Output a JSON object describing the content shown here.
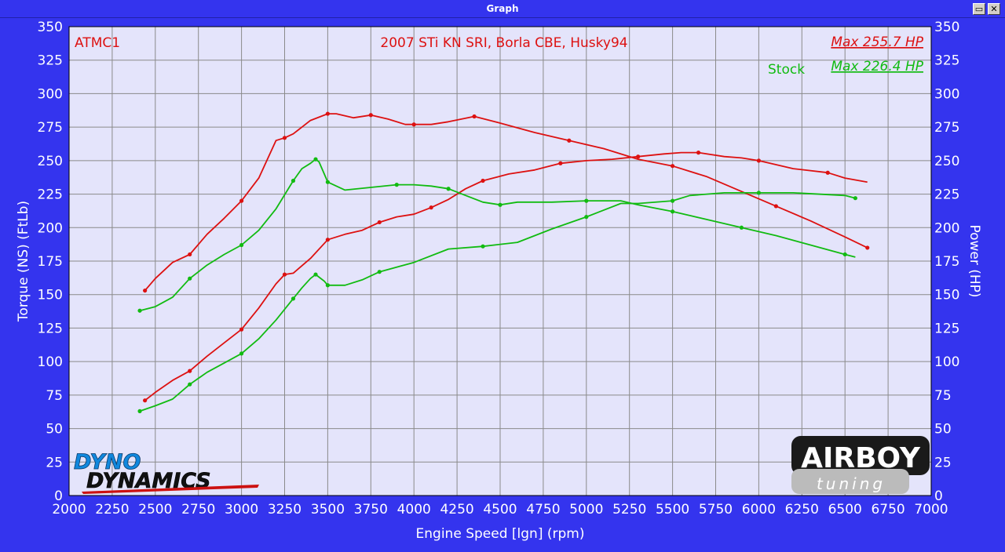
{
  "window": {
    "title": "Graph",
    "restore_label": "▭",
    "close_label": "✕"
  },
  "logos": {
    "dyno_top": "DYNO",
    "dyno_bottom": "DYNAMICS",
    "airboy_top": "AIRBOY",
    "airboy_bottom": "tuning"
  },
  "colors": {
    "background": "#3434ee",
    "plot_bg": "#e4e4fb",
    "grid": "#808080",
    "run1": "#dd1111",
    "run2": "#11bb11"
  },
  "chart_data": {
    "type": "line",
    "xlabel": "Engine Speed [lgn] (rpm)",
    "ylabel_left": "Torque (NS) (FtLb)",
    "ylabel_right": "Power (HP)",
    "xlim": [
      2000,
      7000
    ],
    "ylim": [
      0,
      350
    ],
    "x_ticks": [
      2000,
      2250,
      2500,
      2750,
      3000,
      3250,
      3500,
      3750,
      4000,
      4250,
      4500,
      4750,
      5000,
      5250,
      5500,
      5750,
      6000,
      6250,
      6500,
      6750,
      7000
    ],
    "y_ticks": [
      0,
      25,
      50,
      75,
      100,
      125,
      150,
      175,
      200,
      225,
      250,
      275,
      300,
      325,
      350
    ],
    "grid": true,
    "annotations": {
      "left_label": "ATMC1",
      "center_label": "2007 STi KN SRI, Borla CBE, Husky94",
      "run1_max": "Max 255.7 HP",
      "run2_label": "Stock",
      "run2_max": "Max 226.4 HP"
    },
    "series": [
      {
        "name": "ATMC1",
        "measure": "torque",
        "color": "#dd1111",
        "x": [
          2440,
          2500,
          2600,
          2700,
          2800,
          2900,
          3000,
          3100,
          3200,
          3250,
          3300,
          3400,
          3500,
          3550,
          3650,
          3750,
          3850,
          3950,
          4000,
          4100,
          4200,
          4350,
          4500,
          4700,
          4900,
          5100,
          5300,
          5500,
          5700,
          5900,
          6100,
          6300,
          6500,
          6630
        ],
        "y": [
          153,
          162,
          174,
          180,
          195,
          207,
          220,
          237,
          265,
          267,
          270,
          280,
          285,
          285,
          282,
          284,
          281,
          277,
          277,
          277,
          279,
          283,
          278,
          271,
          265,
          259,
          251,
          246,
          238,
          227,
          216,
          205,
          193,
          185
        ]
      },
      {
        "name": "ATMC1",
        "measure": "power",
        "color": "#dd1111",
        "x": [
          2440,
          2500,
          2600,
          2700,
          2800,
          2900,
          3000,
          3100,
          3200,
          3250,
          3300,
          3400,
          3500,
          3600,
          3700,
          3800,
          3900,
          4000,
          4100,
          4200,
          4300,
          4400,
          4550,
          4700,
          4850,
          5000,
          5150,
          5300,
          5450,
          5550,
          5650,
          5800,
          5900,
          6000,
          6100,
          6200,
          6400,
          6500,
          6630
        ],
        "y": [
          71,
          77,
          86,
          93,
          104,
          114,
          124,
          140,
          158,
          165,
          166,
          177,
          191,
          195,
          198,
          204,
          208,
          210,
          215,
          221,
          229,
          235,
          240,
          243,
          248,
          250,
          251,
          253,
          255,
          256,
          256,
          253,
          252,
          250,
          247,
          244,
          241,
          237,
          234
        ]
      },
      {
        "name": "Stock",
        "measure": "torque",
        "color": "#11bb11",
        "x": [
          2410,
          2500,
          2600,
          2700,
          2800,
          2900,
          3000,
          3100,
          3200,
          3300,
          3350,
          3400,
          3430,
          3450,
          3480,
          3500,
          3600,
          3750,
          3900,
          4000,
          4100,
          4200,
          4300,
          4400,
          4500,
          4600,
          4800,
          5000,
          5200,
          5300,
          5500,
          5600,
          5700,
          5900,
          6100,
          6300,
          6500,
          6560
        ],
        "y": [
          138,
          141,
          148,
          162,
          172,
          180,
          187,
          198,
          214,
          235,
          244,
          248,
          251,
          249,
          240,
          234,
          228,
          230,
          232,
          232,
          231,
          229,
          224,
          219,
          217,
          219,
          219,
          220,
          220,
          217,
          212,
          209,
          206,
          200,
          194,
          187,
          180,
          178
        ]
      },
      {
        "name": "Stock",
        "measure": "power",
        "color": "#11bb11",
        "x": [
          2410,
          2500,
          2600,
          2700,
          2800,
          2900,
          3000,
          3100,
          3200,
          3300,
          3350,
          3400,
          3430,
          3450,
          3480,
          3500,
          3600,
          3700,
          3800,
          4000,
          4200,
          4400,
          4600,
          4800,
          5000,
          5200,
          5300,
          5500,
          5600,
          5800,
          6000,
          6200,
          6500,
          6560
        ],
        "y": [
          63,
          67,
          72,
          83,
          92,
          99,
          106,
          117,
          131,
          147,
          155,
          162,
          165,
          163,
          160,
          157,
          157,
          161,
          167,
          174,
          184,
          186,
          189,
          199,
          208,
          218,
          218,
          220,
          224,
          226,
          226,
          226,
          224,
          222
        ]
      }
    ]
  }
}
